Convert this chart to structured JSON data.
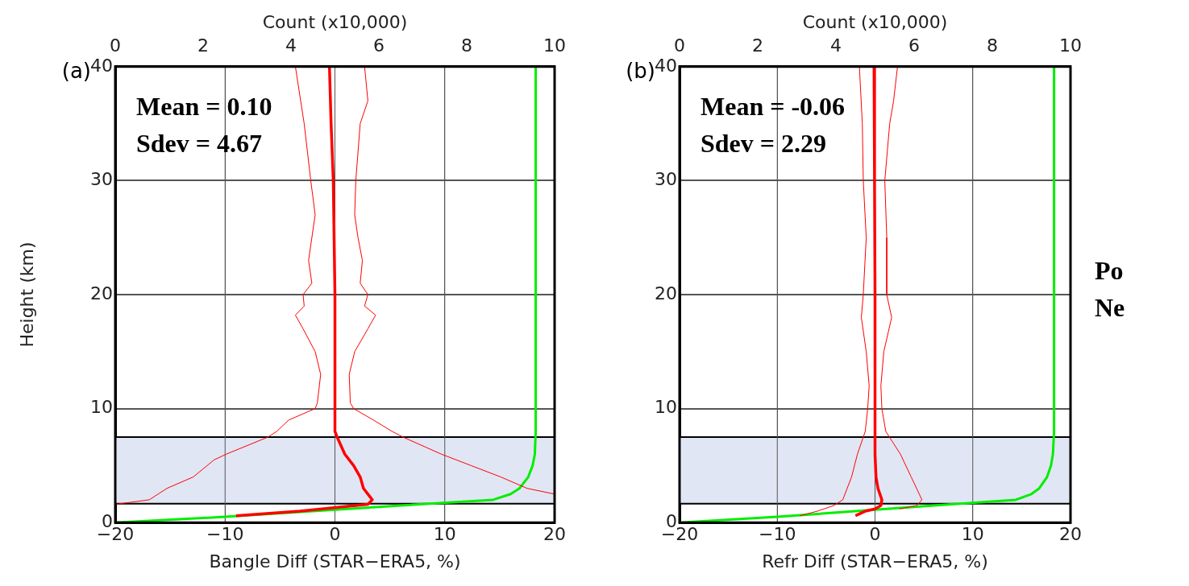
{
  "chart_data": [
    {
      "type": "line",
      "xlabel": "Bangle Diff (STAR−ERA5, %)",
      "x2label": "Count (x10,000)",
      "ylabel": "Height (km)",
      "xlim": [
        -20,
        20
      ],
      "xticks": [
        -20,
        -10,
        0,
        10,
        20
      ],
      "x2lim": [
        0,
        10
      ],
      "x2ticks": [
        0,
        2,
        4,
        6,
        8,
        10
      ],
      "ylim": [
        0,
        40
      ],
      "yticks": [
        0,
        10,
        20,
        30,
        40
      ],
      "grid": true,
      "marker": "none",
      "annotations": [
        "(a)",
        "Mean = 0.10",
        "Sdev = 4.67"
      ],
      "bands": [
        {
          "axis": "y",
          "from": 1.65,
          "to": 7.5,
          "color": "#e0e6f4"
        }
      ],
      "ref_lines": [
        {
          "axis": "y",
          "value": 1.65,
          "color": "#000000"
        },
        {
          "axis": "y",
          "value": 7.5,
          "color": "#000000"
        }
      ],
      "series": [
        {
          "color": "#ff0000",
          "x": [
            -0.5,
            -0.35,
            -0.15,
            0,
            0,
            0.2,
            0.9,
            1.7,
            2.3,
            2.6,
            3.4,
            3.0,
            -3.2,
            -9.0
          ],
          "values": [
            40,
            35,
            30,
            20,
            8,
            7.5,
            6,
            5,
            4,
            3,
            2,
            1.6,
            1,
            0.6
          ]
        },
        {
          "color": "#ff0000",
          "x": [
            -3.6,
            -2.8,
            -2.2,
            -1.8,
            -2.1,
            -2.4,
            -2.1,
            -2.9,
            -2.8,
            -3.6,
            -2.9,
            -1.8,
            -1.3,
            -1.6,
            -1.8,
            -4.2,
            -5.3,
            -6.1,
            -9.9,
            -11,
            -12.9,
            -15.3,
            -16.9,
            -20
          ],
          "values": [
            40,
            35,
            30,
            27,
            25,
            23,
            21,
            20,
            19,
            18.2,
            17,
            15,
            13,
            10.5,
            10,
            9,
            8,
            7.5,
            6,
            5.5,
            4,
            3,
            2,
            1.6
          ]
        },
        {
          "color": "#ff0000",
          "x": [
            2.7,
            3.0,
            2.3,
            1.9,
            1.8,
            2.1,
            2.5,
            2.3,
            3.0,
            2.7,
            3.7,
            3.0,
            1.8,
            1.3,
            1.4,
            1.7,
            3.5,
            5.2,
            6.2,
            9.7,
            12.4,
            15.1,
            17.5,
            20
          ],
          "values": [
            40,
            37,
            35,
            30,
            27,
            25,
            23,
            21,
            20,
            19,
            18.2,
            17,
            15,
            13,
            10.5,
            10,
            9,
            8,
            7.5,
            6,
            5,
            4,
            3,
            2.5
          ]
        },
        {
          "color": "#00ee00",
          "axis": "x2",
          "x": [
            9.57,
            9.57,
            9.55,
            9.5,
            9.4,
            9.2,
            9.0,
            8.6,
            6.5,
            4.5,
            2.5,
            0
          ],
          "values": [
            40,
            8,
            6,
            5,
            4,
            3,
            2.5,
            2,
            1.5,
            1,
            0.5,
            0
          ]
        }
      ]
    },
    {
      "type": "line",
      "xlabel": "Refr Diff (STAR−ERA5, %)",
      "x2label": "Count (x10,000)",
      "xlim": [
        -20,
        20
      ],
      "xticks": [
        -20,
        -10,
        0,
        10,
        20
      ],
      "x2lim": [
        0,
        10
      ],
      "x2ticks": [
        0,
        2,
        4,
        6,
        8,
        10
      ],
      "ylim": [
        0,
        40
      ],
      "yticks": [
        0,
        10,
        20,
        30,
        40
      ],
      "grid": true,
      "marker": "none",
      "annotations": [
        "(b)",
        "Mean = -0.06",
        "Sdev = 2.29",
        "Po",
        "Ne"
      ],
      "bands": [
        {
          "axis": "y",
          "from": 1.65,
          "to": 7.5,
          "color": "#e0e6f4"
        }
      ],
      "ref_lines": [
        {
          "axis": "y",
          "value": 1.65,
          "color": "#000000"
        },
        {
          "axis": "y",
          "value": 7.5,
          "color": "#000000"
        }
      ],
      "series": [
        {
          "color": "#ff0000",
          "x": [
            -0.1,
            -0.05,
            0,
            0,
            0,
            0,
            0.1,
            0.3,
            0.7,
            0.6,
            0,
            -1.0,
            -2.0
          ],
          "values": [
            40,
            30,
            20,
            10,
            8,
            6,
            4,
            3,
            2,
            1.5,
            1.2,
            1,
            0.6
          ]
        },
        {
          "color": "#ff0000",
          "x": [
            -1.6,
            -1.3,
            -1.2,
            -0.9,
            -1.2,
            -1.4,
            -0.9,
            -0.6,
            -0.75,
            -1.0,
            -1.8,
            -2.4,
            -3.3,
            -4.2,
            -5.9,
            -7.7
          ],
          "values": [
            40,
            35,
            30,
            25,
            20,
            18,
            15,
            12,
            10,
            8,
            6,
            4,
            2,
            1.5,
            1,
            0.6
          ]
        },
        {
          "color": "#ff0000",
          "x": [
            2.3,
            1.9,
            1.5,
            1.0,
            1.2,
            1.2,
            1.7,
            0.9,
            0.6,
            0.7,
            1.1,
            2.6,
            3.7,
            4.8,
            4.3,
            2.5
          ],
          "values": [
            40,
            37,
            35,
            30,
            25,
            20,
            18,
            15,
            12,
            10,
            8,
            6,
            4,
            2,
            1.5,
            1.2
          ]
        },
        {
          "color": "#00ee00",
          "axis": "x2",
          "x": [
            9.58,
            9.58,
            9.55,
            9.5,
            9.4,
            9.2,
            9.0,
            8.6,
            6.5,
            4.5,
            2.5,
            0
          ],
          "values": [
            40,
            8,
            6,
            5,
            4,
            3,
            2.5,
            2,
            1.5,
            1,
            0.5,
            0
          ]
        }
      ]
    }
  ]
}
